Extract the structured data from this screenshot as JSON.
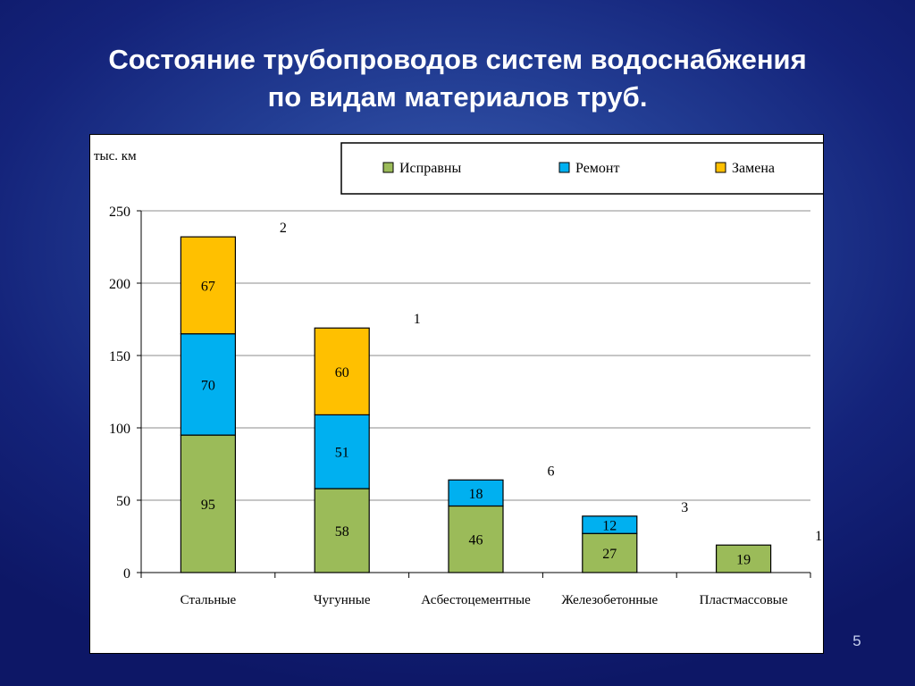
{
  "slide": {
    "title_line1": "Состояние трубопроводов систем водоснабжения",
    "title_line2": "по видам материалов труб.",
    "page_number": "5"
  },
  "colors": {
    "ok": "#9bbb59",
    "repair": "#00b0f0",
    "replace": "#ffc000"
  },
  "chart_data": {
    "type": "bar",
    "stacked": true,
    "ylabel": "тыс. км",
    "xlabel": "",
    "ylim": [
      0,
      250
    ],
    "yticks": [
      0,
      50,
      100,
      150,
      200,
      250
    ],
    "grid": true,
    "legend_position": "top",
    "categories": [
      "Стальные",
      "Чугунные",
      "Асбестоцементные",
      "Железобетонные",
      "Пластмассовые"
    ],
    "series": [
      {
        "name": "Исправны",
        "color": "#9bbb59",
        "values": [
          95,
          58,
          46,
          27,
          19
        ]
      },
      {
        "name": "Ремонт",
        "color": "#00b0f0",
        "values": [
          70,
          51,
          18,
          12,
          0
        ]
      },
      {
        "name": "Замена",
        "color": "#ffc000",
        "values": [
          67,
          60,
          0,
          0,
          0
        ]
      }
    ],
    "annotations": [
      "2",
      "1",
      "6",
      "3",
      "1"
    ]
  }
}
